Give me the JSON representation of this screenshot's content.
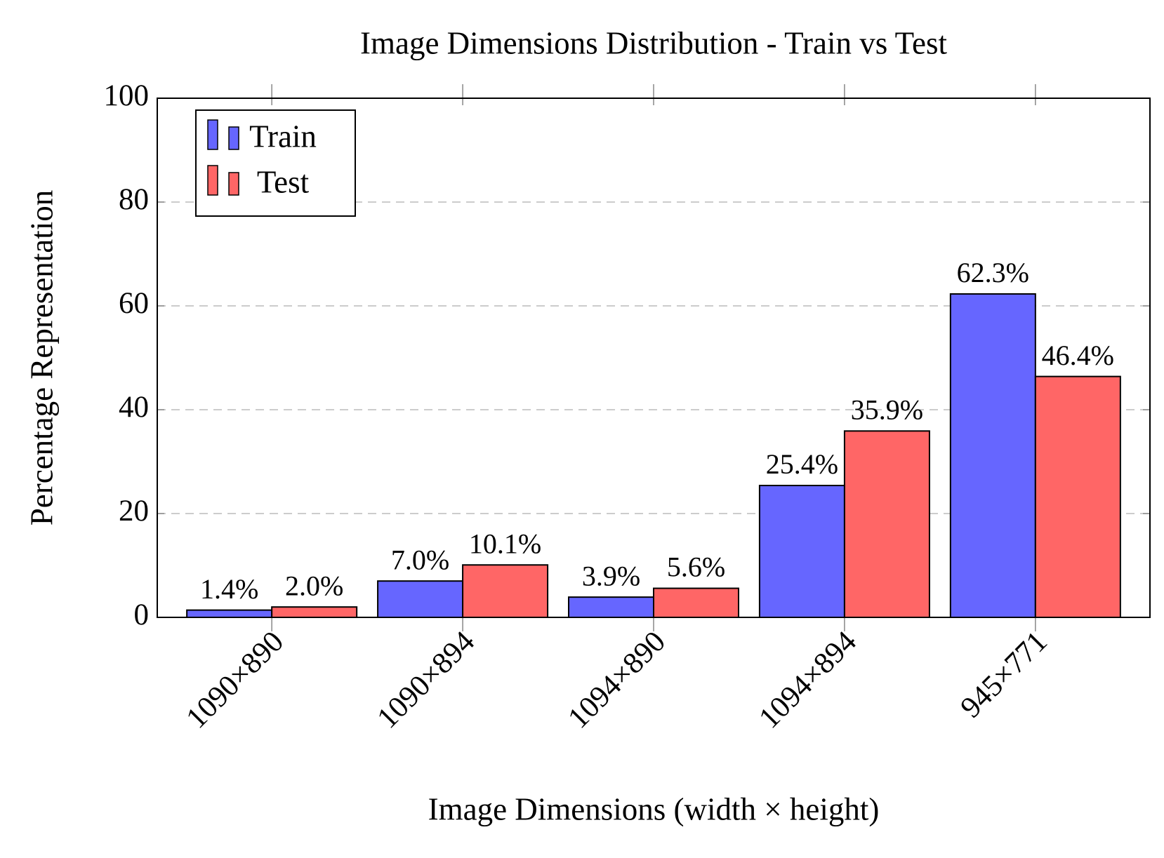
{
  "chart_data": {
    "type": "bar",
    "title": "Image Dimensions Distribution - Train vs Test",
    "x_label": "Image Dimensions (width × height)",
    "y_label": "Percentage Representation",
    "categories": [
      "1090×890",
      "1090×894",
      "1094×890",
      "1094×894",
      "945×771"
    ],
    "series": [
      {
        "name": "Train",
        "color": "#6666ff",
        "values": [
          1.4,
          7.0,
          3.9,
          25.4,
          62.3
        ],
        "value_labels": [
          "1.4%",
          "7.0%",
          "3.9%",
          "25.4%",
          "62.3%"
        ]
      },
      {
        "name": "Test",
        "color": "#ff6666",
        "values": [
          2.0,
          10.1,
          5.6,
          35.9,
          46.4
        ],
        "value_labels": [
          "2.0%",
          "10.1%",
          "5.6%",
          "35.9%",
          "46.4%"
        ]
      }
    ],
    "ylim": [
      0,
      100
    ],
    "yticks": [
      0,
      20,
      40,
      60,
      80,
      100
    ],
    "grid": true,
    "legend": "upper-left"
  }
}
